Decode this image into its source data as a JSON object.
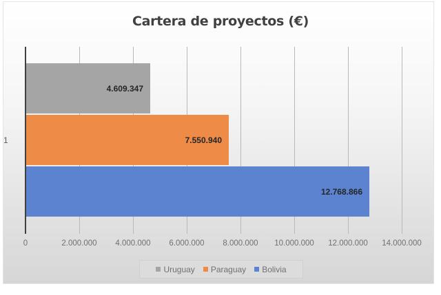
{
  "chart_data": {
    "type": "bar",
    "orientation": "horizontal",
    "title": "Cartera de proyectos (€)",
    "categories": [
      "1"
    ],
    "series": [
      {
        "name": "Uruguay",
        "values": [
          4609347
        ],
        "label": "4.609.347",
        "color": "#a5a5a5"
      },
      {
        "name": "Paraguay",
        "values": [
          7550940
        ],
        "label": "7.550.940",
        "color": "#ed8b47"
      },
      {
        "name": "Bolivia",
        "values": [
          12768866
        ],
        "label": "12.768.866",
        "color": "#5b83cf"
      }
    ],
    "xlabel": "",
    "ylabel": "",
    "xlim": [
      0,
      14000000
    ],
    "x_ticks": [
      "0",
      "2.000.000",
      "4.000.000",
      "6.000.000",
      "8.000.000",
      "10.000.000",
      "12.000.000",
      "14.000.000"
    ],
    "grid": true,
    "legend_position": "bottom",
    "data_labels": true
  },
  "legend": [
    {
      "label": "Uruguay",
      "color": "#a5a5a5"
    },
    {
      "label": "Paraguay",
      "color": "#ed8b47"
    },
    {
      "label": "Bolivia",
      "color": "#5b83cf"
    }
  ]
}
